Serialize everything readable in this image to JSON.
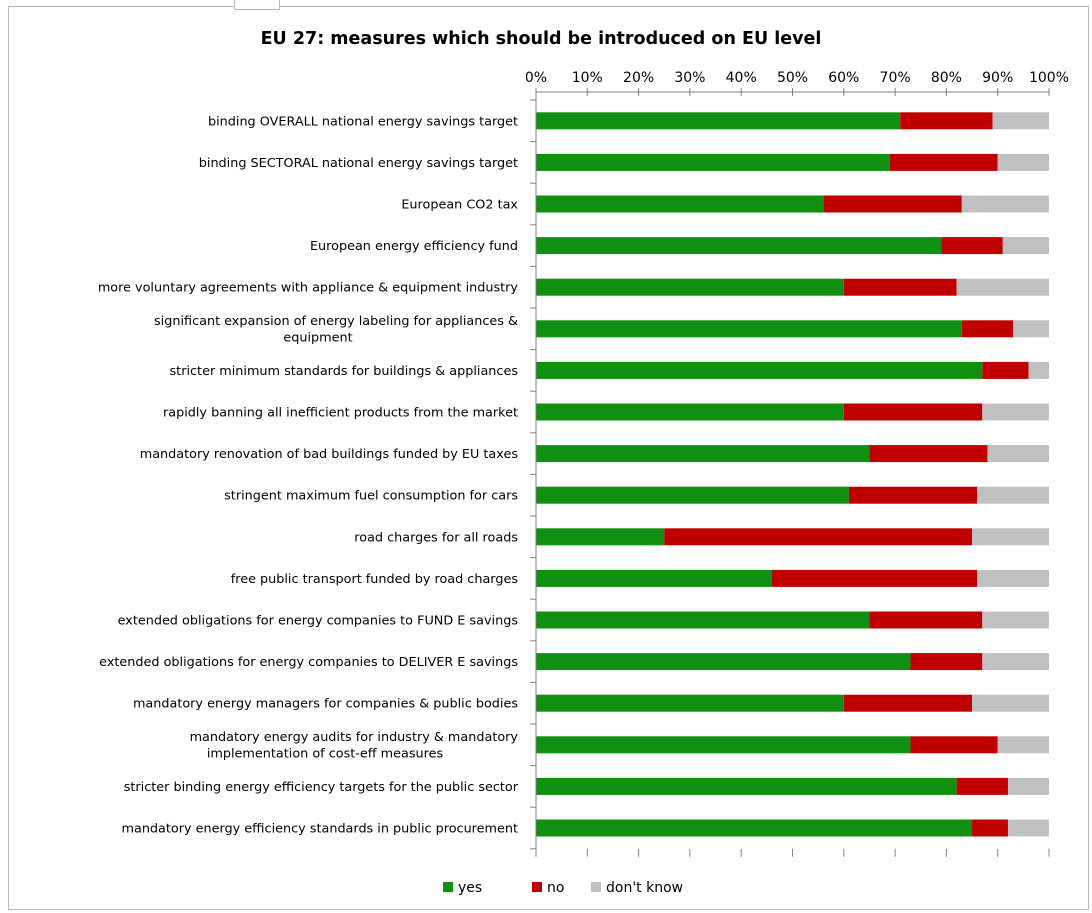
{
  "chart_data": {
    "type": "bar",
    "orientation": "horizontal",
    "stacked": true,
    "percent_stacked": true,
    "title": "EU 27: measures which should be introduced on EU level",
    "xlabel": "",
    "ylabel": "",
    "xlim": [
      0,
      100
    ],
    "x_ticks": [
      "0%",
      "10%",
      "20%",
      "30%",
      "40%",
      "50%",
      "60%",
      "70%",
      "80%",
      "90%",
      "100%"
    ],
    "x_axis_position": "top",
    "grid": false,
    "legend_position": "bottom",
    "categories": [
      "binding OVERALL national energy savings target",
      "binding  SECTORAL national energy savings target",
      "European CO2 tax",
      "European energy efficiency fund",
      "more voluntary agreements with appliance & equipment industry",
      "significant expansion of energy labeling for appliances & equipment",
      "stricter minimum standards for buildings & appliances",
      "rapidly banning all inefficient products from the market",
      "mandatory renovation of bad buildings funded by EU taxes",
      "stringent maximum fuel consumption for cars",
      "road charges for all roads",
      "free public transport funded by road charges",
      "extended obligations for energy companies to FUND E savings",
      "extended obligations for energy companies to DELIVER E savings",
      "mandatory energy managers for companies & public bodies",
      "mandatory energy audits for industry & mandatory implementation of cost-eff measures",
      "stricter binding energy efficiency targets for the public sector",
      "mandatory energy efficiency standards in public procurement"
    ],
    "series": [
      {
        "name": "yes",
        "color": "#109010",
        "values": [
          71,
          69,
          56,
          79,
          60,
          83,
          87,
          60,
          65,
          61,
          25,
          46,
          65,
          73,
          60,
          73,
          82,
          85
        ]
      },
      {
        "name": "no",
        "color": "#c00000",
        "values": [
          18,
          21,
          27,
          12,
          22,
          10,
          9,
          27,
          23,
          25,
          60,
          40,
          22,
          14,
          25,
          17,
          10,
          7
        ]
      },
      {
        "name": "don't know",
        "color": "#c0c0c0",
        "values": [
          11,
          10,
          17,
          9,
          18,
          7,
          4,
          13,
          12,
          14,
          15,
          14,
          13,
          13,
          15,
          10,
          8,
          8
        ]
      }
    ]
  }
}
